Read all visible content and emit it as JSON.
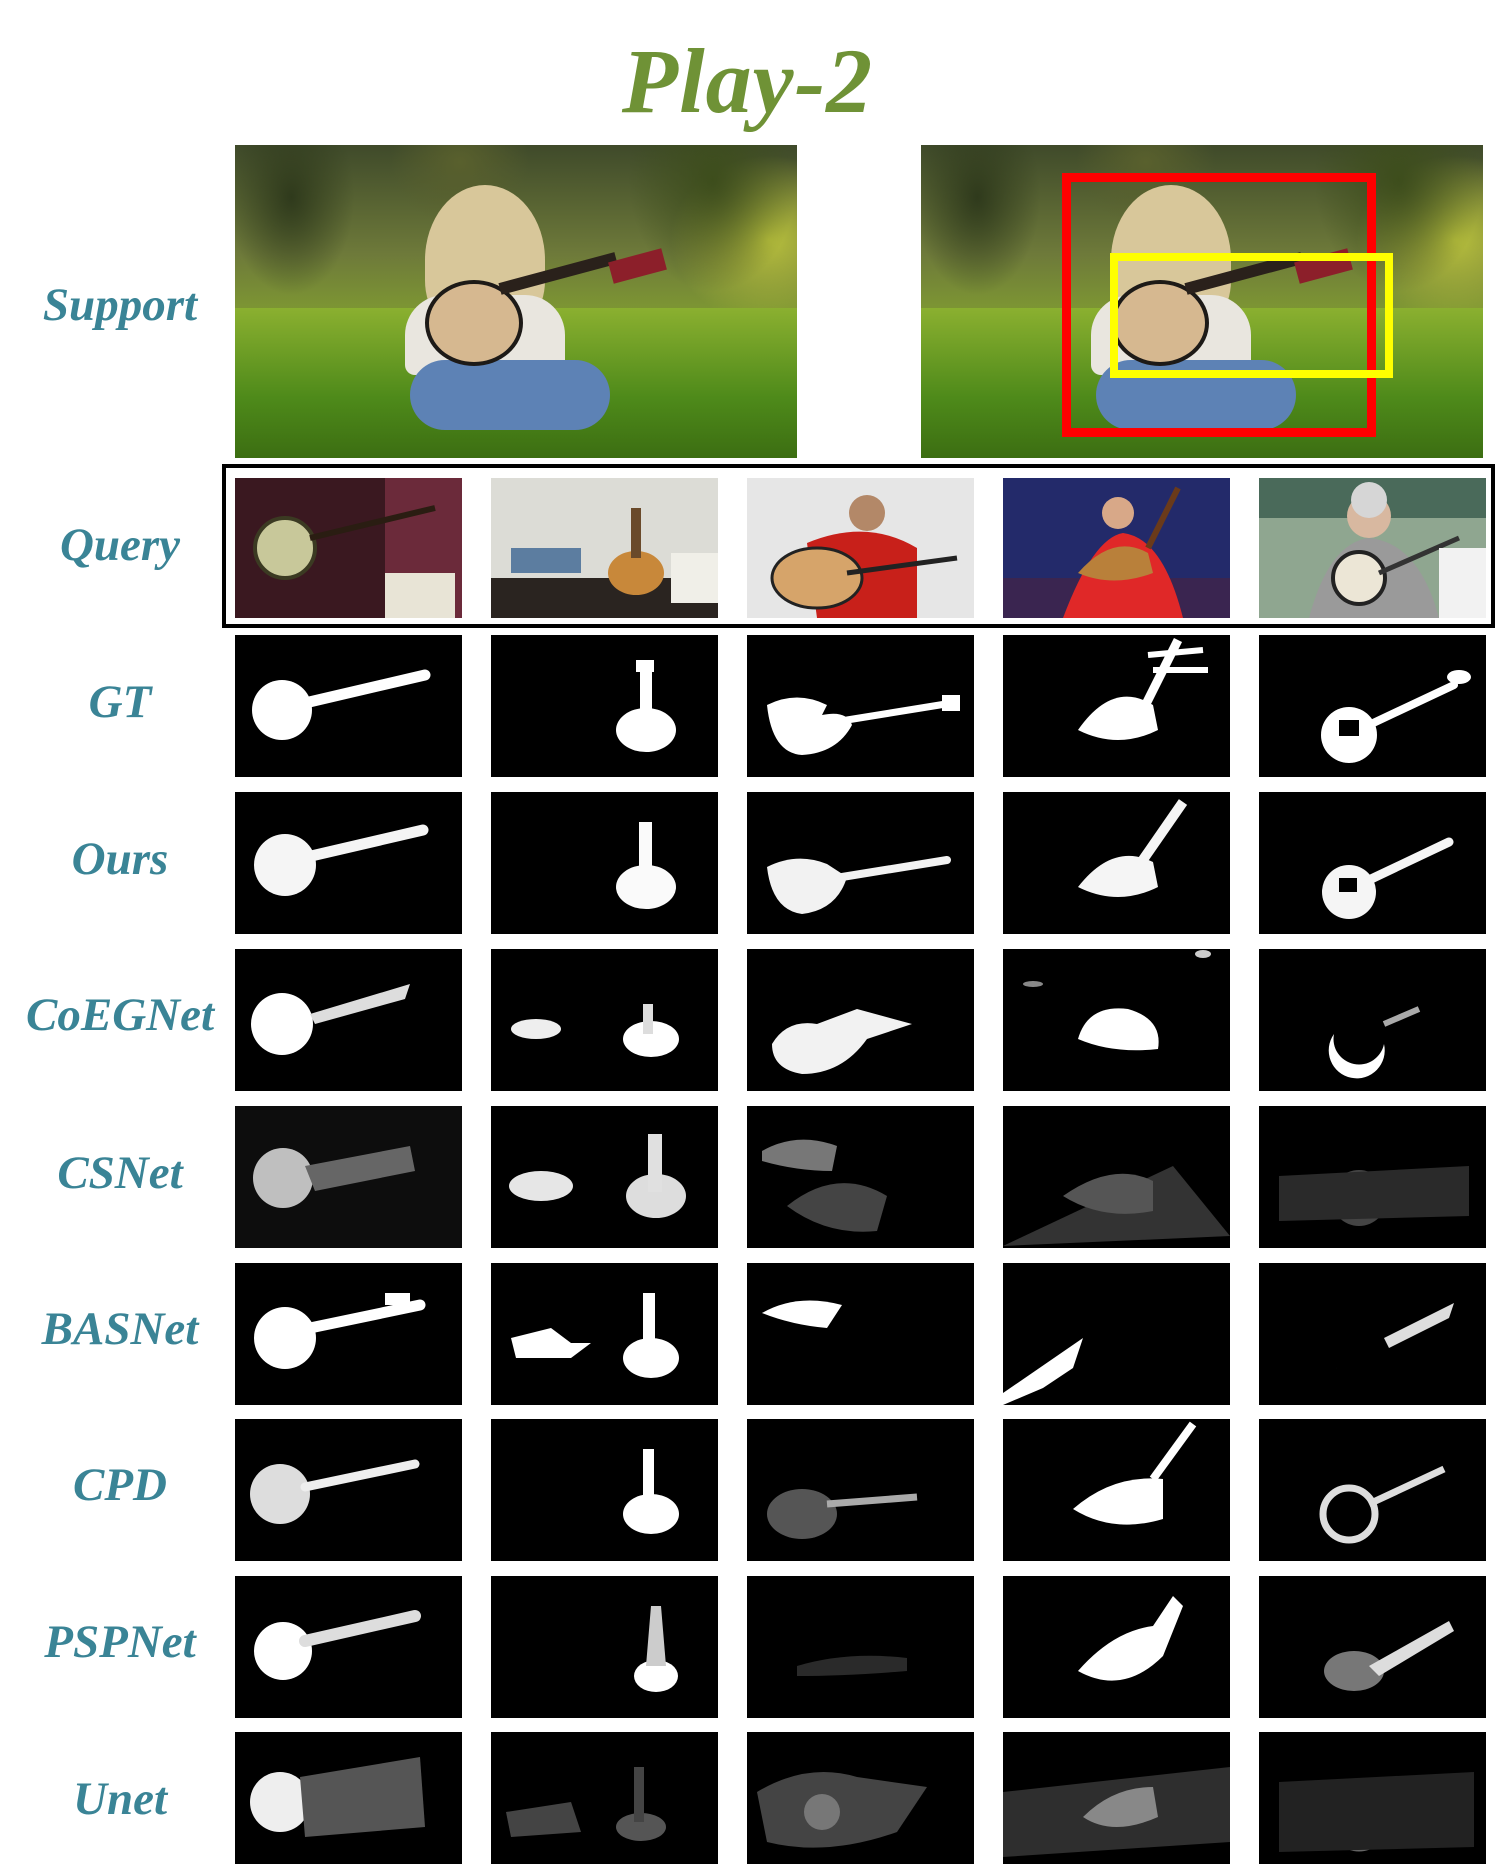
{
  "title": "Play-2",
  "colors": {
    "title": "#6f9236",
    "label": "#3a8496",
    "box_outer": "#ff0000",
    "box_inner": "#ffff00",
    "query_frame": "#000000"
  },
  "row_labels": {
    "support": "Support",
    "query": "Query",
    "gt": "GT",
    "ours": "Ours",
    "coegnet": "CoEGNet",
    "csnet": "CSNet",
    "basnet": "BASNet",
    "cpd": "CPD",
    "pspnet": "PSPNet",
    "unet": "Unet"
  },
  "query_images": [
    "banjo-in-display-case",
    "acoustic-guitar-in-room",
    "man-playing-guitar",
    "woman-playing-pipa",
    "man-playing-banjo"
  ]
}
